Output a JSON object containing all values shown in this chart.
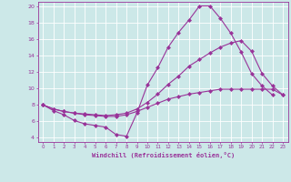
{
  "background_color": "#cce8e8",
  "grid_color": "#ffffff",
  "line_color": "#993399",
  "xlabel": "Windchill (Refroidissement éolien,°C)",
  "xlim": [
    -0.5,
    23.5
  ],
  "ylim": [
    3.5,
    20.5
  ],
  "yticks": [
    4,
    6,
    8,
    10,
    12,
    14,
    16,
    18,
    20
  ],
  "xticks": [
    0,
    1,
    2,
    3,
    4,
    5,
    6,
    7,
    8,
    9,
    10,
    11,
    12,
    13,
    14,
    15,
    16,
    17,
    18,
    19,
    20,
    21,
    22,
    23
  ],
  "line1_x": [
    0,
    1,
    2,
    3,
    4,
    5,
    6,
    7,
    8,
    9,
    10,
    11,
    12,
    13,
    14,
    15,
    16,
    17,
    18,
    19,
    20,
    21,
    22
  ],
  "line1_y": [
    8.0,
    7.3,
    6.8,
    6.1,
    5.7,
    5.5,
    5.3,
    4.4,
    4.2,
    7.0,
    10.4,
    12.5,
    15.0,
    16.8,
    18.3,
    20.0,
    20.0,
    18.5,
    16.7,
    14.4,
    11.8,
    10.3,
    9.2
  ],
  "line2_x": [
    0,
    1,
    2,
    3,
    4,
    5,
    6,
    7,
    8,
    9,
    10,
    11,
    12,
    13,
    14,
    15,
    16,
    17,
    18,
    19,
    20,
    21,
    22,
    23
  ],
  "line2_y": [
    8.0,
    7.5,
    7.2,
    7.0,
    6.9,
    6.8,
    6.7,
    6.8,
    7.0,
    7.5,
    8.3,
    9.3,
    10.5,
    11.5,
    12.7,
    13.5,
    14.3,
    15.0,
    15.5,
    15.8,
    14.5,
    11.8,
    10.3,
    9.2
  ],
  "line3_x": [
    0,
    1,
    2,
    3,
    4,
    5,
    6,
    7,
    8,
    9,
    10,
    11,
    12,
    13,
    14,
    15,
    16,
    17,
    18,
    19,
    20,
    21,
    22,
    23
  ],
  "line3_y": [
    8.0,
    7.5,
    7.2,
    7.0,
    6.8,
    6.7,
    6.6,
    6.6,
    6.8,
    7.2,
    7.7,
    8.2,
    8.7,
    9.0,
    9.3,
    9.5,
    9.7,
    9.9,
    9.9,
    9.9,
    9.9,
    9.9,
    9.9,
    9.2
  ]
}
